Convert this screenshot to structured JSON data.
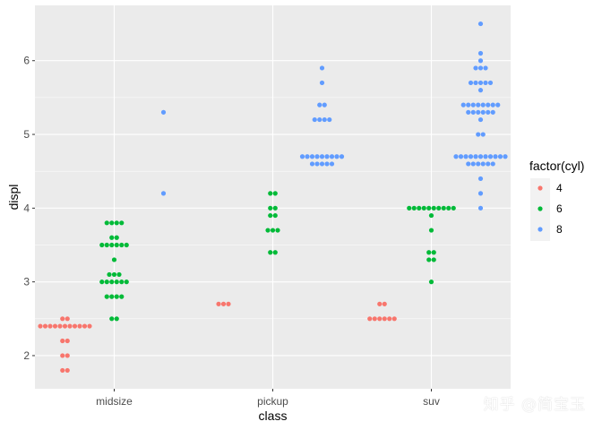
{
  "chart_data": {
    "type": "scatter",
    "subtype": "dotplot",
    "title": "",
    "xlabel": "class",
    "ylabel": "displ",
    "categories": [
      "midsize",
      "pickup",
      "suv"
    ],
    "ylim": [
      1.55,
      6.75
    ],
    "yticks": [
      2,
      3,
      4,
      5,
      6
    ],
    "grid": true,
    "legend": {
      "title": "factor(cyl)",
      "position": "right",
      "entries": [
        {
          "label": "4",
          "color": "#F8766D"
        },
        {
          "label": "6",
          "color": "#00BA38"
        },
        {
          "label": "8",
          "color": "#619CFF"
        }
      ]
    },
    "series": [
      {
        "name": "4",
        "color": "#F8766D",
        "groups": [
          {
            "category": "midsize",
            "points": [
              {
                "y": 1.8,
                "n": 2
              },
              {
                "y": 2.0,
                "n": 2
              },
              {
                "y": 2.2,
                "n": 2
              },
              {
                "y": 2.4,
                "n": 11
              },
              {
                "y": 2.5,
                "n": 2
              }
            ]
          },
          {
            "category": "pickup",
            "points": [
              {
                "y": 2.7,
                "n": 3
              }
            ]
          },
          {
            "category": "suv",
            "points": [
              {
                "y": 2.5,
                "n": 6
              },
              {
                "y": 2.7,
                "n": 2
              }
            ]
          }
        ]
      },
      {
        "name": "6",
        "color": "#00BA38",
        "groups": [
          {
            "category": "midsize",
            "points": [
              {
                "y": 2.5,
                "n": 2
              },
              {
                "y": 2.8,
                "n": 4
              },
              {
                "y": 3.0,
                "n": 6
              },
              {
                "y": 3.1,
                "n": 3
              },
              {
                "y": 3.3,
                "n": 1
              },
              {
                "y": 3.5,
                "n": 6
              },
              {
                "y": 3.6,
                "n": 2
              },
              {
                "y": 3.8,
                "n": 4
              }
            ]
          },
          {
            "category": "pickup",
            "points": [
              {
                "y": 3.4,
                "n": 2
              },
              {
                "y": 3.7,
                "n": 3
              },
              {
                "y": 3.9,
                "n": 2
              },
              {
                "y": 4.0,
                "n": 2
              },
              {
                "y": 4.2,
                "n": 2
              }
            ]
          },
          {
            "category": "suv",
            "points": [
              {
                "y": 3.0,
                "n": 1
              },
              {
                "y": 3.3,
                "n": 2
              },
              {
                "y": 3.4,
                "n": 2
              },
              {
                "y": 3.7,
                "n": 1
              },
              {
                "y": 3.9,
                "n": 1
              },
              {
                "y": 4.0,
                "n": 10
              }
            ]
          }
        ]
      },
      {
        "name": "8",
        "color": "#619CFF",
        "groups": [
          {
            "category": "midsize",
            "points": [
              {
                "y": 4.2,
                "n": 1
              },
              {
                "y": 5.3,
                "n": 1
              }
            ]
          },
          {
            "category": "pickup",
            "points": [
              {
                "y": 4.6,
                "n": 5
              },
              {
                "y": 4.7,
                "n": 9
              },
              {
                "y": 5.2,
                "n": 4
              },
              {
                "y": 5.4,
                "n": 2
              },
              {
                "y": 5.7,
                "n": 1
              },
              {
                "y": 5.9,
                "n": 1
              }
            ]
          },
          {
            "category": "suv",
            "points": [
              {
                "y": 4.0,
                "n": 1
              },
              {
                "y": 4.2,
                "n": 1
              },
              {
                "y": 4.4,
                "n": 1
              },
              {
                "y": 4.6,
                "n": 6
              },
              {
                "y": 4.7,
                "n": 11
              },
              {
                "y": 5.0,
                "n": 2
              },
              {
                "y": 5.2,
                "n": 1
              },
              {
                "y": 5.3,
                "n": 6
              },
              {
                "y": 5.4,
                "n": 8
              },
              {
                "y": 5.6,
                "n": 1
              },
              {
                "y": 5.7,
                "n": 5
              },
              {
                "y": 5.9,
                "n": 3
              },
              {
                "y": 6.0,
                "n": 1
              },
              {
                "y": 6.1,
                "n": 1
              },
              {
                "y": 6.5,
                "n": 1
              }
            ]
          }
        ]
      }
    ]
  },
  "watermark": "知乎 @简宝玉"
}
